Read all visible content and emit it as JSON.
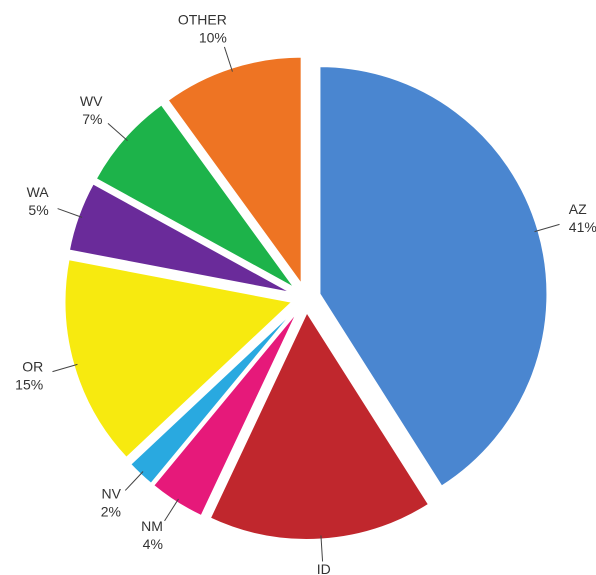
{
  "chart_data": {
    "type": "pie",
    "categories": [
      "AZ",
      "ID",
      "NM",
      "NV",
      "OR",
      "WA",
      "WV",
      "OTHER"
    ],
    "values": [
      41,
      16,
      4,
      2,
      15,
      5,
      7,
      10
    ],
    "value_labels": [
      "41%",
      "16%",
      "4%",
      "2%",
      "15%",
      "5%",
      "7%",
      "10%"
    ],
    "colors": [
      "#4a86d0",
      "#c0272d",
      "#e6197a",
      "#29a9e0",
      "#f7ea0f",
      "#6a2b9a",
      "#1db34a",
      "#ee7423"
    ]
  }
}
